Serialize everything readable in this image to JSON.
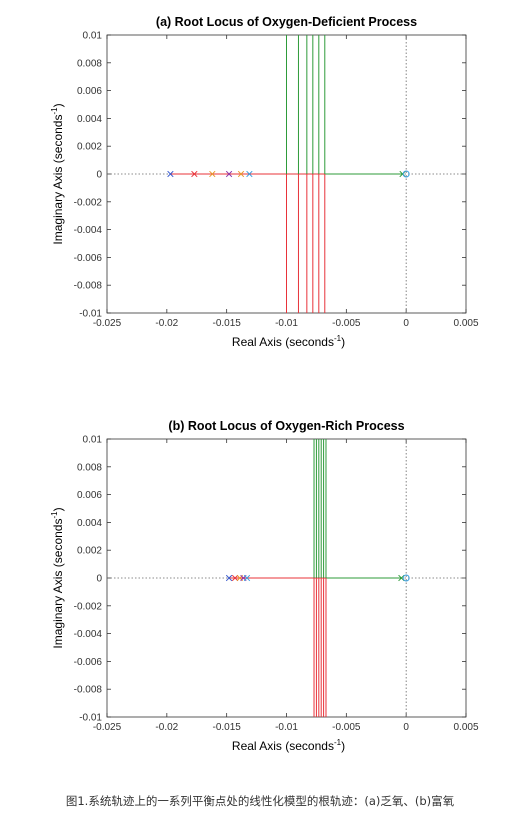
{
  "caption": "图1.系统轨迹上的一系列平衡点处的线性化模型的根轨迹：(a)乏氧、(b)富氧",
  "chart_data": [
    {
      "type": "line",
      "title": "(a) Root Locus of Oxygen-Deficient Process",
      "xlabel": "Real Axis (seconds",
      "ylabel": "Imaginary Axis (seconds",
      "unit_exponent": "-1",
      "xlim": [
        -0.025,
        0.005
      ],
      "ylim": [
        -0.01,
        0.01
      ],
      "xticks": [
        "-0.025",
        "-0.02",
        "-0.015",
        "-0.01",
        "-0.005",
        "0",
        "0.005"
      ],
      "yticks": [
        "0.01",
        "0.008",
        "0.006",
        "0.004",
        "0.002",
        "0",
        "-0.002",
        "-0.004",
        "-0.006",
        "-0.008",
        "-0.01"
      ],
      "colors": {
        "locus_lower": "#e8333a",
        "locus_upper": "#2e9b3a",
        "zero": "#3aa0e0",
        "axis_dotted": "#666666"
      },
      "open_loop_poles": [
        {
          "x": -0.0197,
          "color": "#3355cc"
        },
        {
          "x": -0.0177,
          "color": "#e8333a"
        },
        {
          "x": -0.0162,
          "color": "#e89a2a"
        },
        {
          "x": -0.0148,
          "color": "#8833aa"
        },
        {
          "x": -0.0138,
          "color": "#e89a2a"
        },
        {
          "x": -0.0131,
          "color": "#3aa0e0"
        },
        {
          "x": -0.0003,
          "color": "#2e9b3a"
        }
      ],
      "zero": {
        "x": 0.0
      },
      "breakaway_lines": [
        {
          "x": -0.01,
          "upper_color": "#2e9b3a",
          "lower_color": "#e8333a"
        },
        {
          "x": -0.009,
          "upper_color": "#2e9b3a",
          "lower_color": "#e8333a"
        },
        {
          "x": -0.0083,
          "upper_color": "#2e9b3a",
          "lower_color": "#e8333a"
        },
        {
          "x": -0.0078,
          "upper_color": "#2e9b3a",
          "lower_color": "#e8333a"
        },
        {
          "x": -0.0073,
          "upper_color": "#2e9b3a",
          "lower_color": "#e8333a"
        },
        {
          "x": -0.0068,
          "upper_color": "#2e9b3a",
          "lower_color": "#e8333a"
        }
      ],
      "real_axis_segment": {
        "from": -0.0197,
        "to": -0.0003
      }
    },
    {
      "type": "line",
      "title": "(b) Root Locus of Oxygen-Rich Process",
      "xlabel": "Real Axis (seconds",
      "ylabel": "Imaginary Axis (seconds",
      "unit_exponent": "-1",
      "xlim": [
        -0.025,
        0.005
      ],
      "ylim": [
        -0.01,
        0.01
      ],
      "xticks": [
        "-0.025",
        "-0.02",
        "-0.015",
        "-0.01",
        "-0.005",
        "0",
        "0.005"
      ],
      "yticks": [
        "0.01",
        "0.008",
        "0.006",
        "0.004",
        "0.002",
        "0",
        "-0.002",
        "-0.004",
        "-0.006",
        "-0.008",
        "-0.01"
      ],
      "colors": {
        "locus_lower": "#e8333a",
        "locus_upper": "#2e9b3a",
        "zero": "#3aa0e0",
        "axis_dotted": "#666666"
      },
      "open_loop_poles": [
        {
          "x": -0.0148,
          "color": "#3355cc"
        },
        {
          "x": -0.0143,
          "color": "#e8333a"
        },
        {
          "x": -0.0139,
          "color": "#e89a2a"
        },
        {
          "x": -0.0136,
          "color": "#8833aa"
        },
        {
          "x": -0.0133,
          "color": "#3aa0e0"
        },
        {
          "x": -0.0004,
          "color": "#2e9b3a"
        }
      ],
      "zero": {
        "x": 0.0
      },
      "breakaway_lines": [
        {
          "x": -0.0077,
          "upper_color": "#2e9b3a",
          "lower_color": "#e8333a"
        },
        {
          "x": -0.0075,
          "upper_color": "#2e9b3a",
          "lower_color": "#e8333a"
        },
        {
          "x": -0.0073,
          "upper_color": "#2e9b3a",
          "lower_color": "#e8333a"
        },
        {
          "x": -0.0071,
          "upper_color": "#2e9b3a",
          "lower_color": "#e8333a"
        },
        {
          "x": -0.0069,
          "upper_color": "#2e9b3a",
          "lower_color": "#e8333a"
        },
        {
          "x": -0.0067,
          "upper_color": "#2e9b3a",
          "lower_color": "#e8333a"
        }
      ],
      "real_axis_segment": {
        "from": -0.0148,
        "to": -0.0004
      }
    }
  ]
}
